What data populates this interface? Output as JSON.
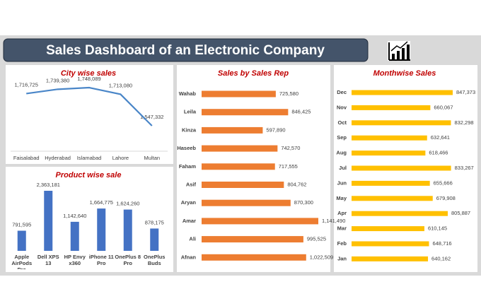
{
  "title": "Sales Dashboard of an Electronic Company",
  "chart_data": [
    {
      "type": "line",
      "title": "City wise sales",
      "color": "#4a86c8",
      "categories": [
        "Faisalabad",
        "Hyderabad",
        "Islamabad",
        "Lahore",
        "Multan"
      ],
      "values": [
        1716725,
        1739380,
        1748089,
        1713080,
        1547332
      ],
      "value_labels": [
        "1,716,725",
        "1,739,380",
        "1,748,089",
        "1,713,080",
        "1,547,332"
      ]
    },
    {
      "type": "hbar",
      "title": "Sales by Sales Rep",
      "color": "#ed7d31",
      "categories": [
        "Wahab",
        "Leila",
        "Kinza",
        "Haseeb",
        "Faham",
        "Asif",
        "Aryan",
        "Amar",
        "Ali",
        "Afnan"
      ],
      "values": [
        725580,
        846425,
        597890,
        742570,
        717555,
        804762,
        870300,
        1141490,
        995525,
        1022509
      ],
      "value_labels": [
        "725,580",
        "846,425",
        "597,890",
        "742,570",
        "717,555",
        "804,762",
        "870,300",
        "1,141,490",
        "995,525",
        "1,022,509"
      ]
    },
    {
      "type": "hbar",
      "title": "Monthwise Sales",
      "color": "#ffc000",
      "categories": [
        "Dec",
        "Nov",
        "Oct",
        "Sep",
        "Aug",
        "Jul",
        "Jun",
        "May",
        "Apr",
        "Mar",
        "Feb",
        "Jan"
      ],
      "values": [
        847373,
        660067,
        832298,
        632641,
        618466,
        833267,
        655666,
        679908,
        805887,
        610145,
        648716,
        640162
      ],
      "value_labels": [
        "847,373",
        "660,067",
        "832,298",
        "632,641",
        "618,466",
        "833,267",
        "655,666",
        "679,908",
        "805,887",
        "610,145",
        "648,716",
        "640,162"
      ]
    },
    {
      "type": "bar",
      "title": "Product wise sale",
      "color": "#4472c4",
      "categories": [
        "Apple AirPods Pro",
        "Dell XPS 13",
        "HP Envy x360",
        "iPhone 11 Pro",
        "OnePlus 8 Pro",
        "OnePlus Buds"
      ],
      "values": [
        791595,
        2363181,
        1142640,
        1664775,
        1624260,
        878175
      ],
      "value_labels": [
        "791,595",
        "2,363,181",
        "1,142,640",
        "1,664,775",
        "1,624,260",
        "878,175"
      ]
    }
  ]
}
